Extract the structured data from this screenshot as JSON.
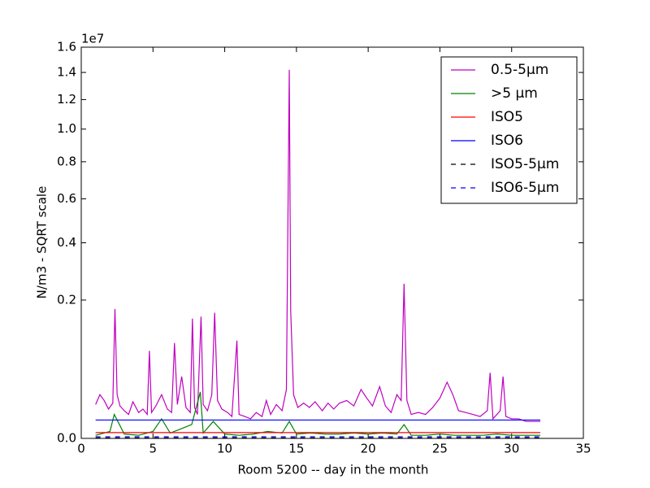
{
  "chart_data": {
    "type": "line",
    "xlabel": "Room 5200 -- day in the month",
    "ylabel": "N/m3 - SQRT scale",
    "y_offset_label": "1e7",
    "yscale": "sqrt",
    "xlim": [
      0,
      35
    ],
    "xticks": [
      0,
      5,
      10,
      15,
      20,
      25,
      30,
      35
    ],
    "ylim": [
      0,
      16000000
    ],
    "yticks": [
      {
        "value": 0,
        "label": "0.0"
      },
      {
        "value": 2000000,
        "label": "0.2"
      },
      {
        "value": 4000000,
        "label": "0.4"
      },
      {
        "value": 6000000,
        "label": "0.6"
      },
      {
        "value": 8000000,
        "label": "0.8"
      },
      {
        "value": 10000000,
        "label": "1.0"
      },
      {
        "value": 12000000,
        "label": "1.2"
      },
      {
        "value": 14000000,
        "label": "1.4"
      },
      {
        "value": 16000000,
        "label": "1.6"
      }
    ],
    "legend": "upper right",
    "series": [
      {
        "name": "0.5-5µm",
        "color": "#bf00bf",
        "dash": false,
        "x": [
          1.0,
          1.3,
          1.6,
          1.9,
          2.2,
          2.35,
          2.5,
          2.7,
          3.0,
          3.3,
          3.6,
          4.0,
          4.3,
          4.6,
          4.75,
          4.9,
          5.2,
          5.6,
          6.0,
          6.3,
          6.5,
          6.7,
          7.0,
          7.3,
          7.6,
          7.75,
          7.9,
          8.1,
          8.35,
          8.5,
          8.8,
          9.1,
          9.3,
          9.5,
          9.8,
          10.2,
          10.5,
          10.85,
          11.0,
          11.4,
          11.8,
          12.2,
          12.6,
          12.9,
          13.2,
          13.6,
          14.0,
          14.3,
          14.5,
          14.6,
          14.8,
          15.1,
          15.5,
          15.9,
          16.3,
          16.8,
          17.2,
          17.6,
          18.0,
          18.5,
          19.0,
          19.5,
          19.9,
          20.3,
          20.8,
          21.2,
          21.6,
          22.0,
          22.3,
          22.5,
          22.7,
          23.0,
          23.5,
          24.0,
          24.5,
          25.0,
          25.5,
          25.9,
          26.3,
          26.8,
          27.3,
          27.8,
          28.3,
          28.5,
          28.7,
          29.2,
          29.4,
          29.6,
          30.0,
          30.5,
          31.0,
          31.5,
          32.0
        ],
        "values": [
          120000,
          200000,
          150000,
          90000,
          130000,
          1750000,
          200000,
          110000,
          80000,
          60000,
          140000,
          70000,
          90000,
          60000,
          800000,
          70000,
          110000,
          200000,
          90000,
          70000,
          950000,
          120000,
          400000,
          100000,
          70000,
          1500000,
          100000,
          60000,
          1550000,
          120000,
          80000,
          200000,
          1650000,
          150000,
          90000,
          70000,
          50000,
          1000000,
          60000,
          50000,
          40000,
          70000,
          50000,
          150000,
          60000,
          120000,
          80000,
          250000,
          14200000,
          1700000,
          200000,
          100000,
          130000,
          100000,
          140000,
          80000,
          130000,
          90000,
          130000,
          150000,
          110000,
          250000,
          170000,
          110000,
          280000,
          110000,
          70000,
          200000,
          150000,
          2500000,
          150000,
          60000,
          70000,
          60000,
          100000,
          170000,
          330000,
          200000,
          80000,
          70000,
          60000,
          50000,
          80000,
          450000,
          40000,
          80000,
          400000,
          50000,
          40000,
          40000,
          30000,
          30000,
          30000
        ]
      },
      {
        "name": ">5 µm",
        "color": "#008000",
        "dash": false,
        "x": [
          1.0,
          2.0,
          2.3,
          3.0,
          4.0,
          5.0,
          5.6,
          6.2,
          7.0,
          7.7,
          8.3,
          8.5,
          9.2,
          10.0,
          11.0,
          12.0,
          13.0,
          14.0,
          14.5,
          15.0,
          16.0,
          17.0,
          18.0,
          19.0,
          20.0,
          21.0,
          22.0,
          22.5,
          23.0,
          24.0,
          25.0,
          26.0,
          27.0,
          28.0,
          29.0,
          30.0,
          31.0,
          32.0
        ],
        "values": [
          1000,
          5000,
          60000,
          2000,
          1000,
          5000,
          40000,
          3000,
          10000,
          20000,
          225000,
          3000,
          30000,
          2000,
          1000,
          2000,
          5000,
          3000,
          30000,
          2000,
          3000,
          2000,
          2000,
          3000,
          2000,
          3000,
          2000,
          20000,
          1000,
          1000,
          2000,
          1000,
          1000,
          1000,
          2000,
          1000,
          1000,
          1000
        ]
      },
      {
        "name": "ISO5",
        "color": "#ff0000",
        "dash": false,
        "x": [
          1,
          32
        ],
        "values": [
          3520,
          3520
        ]
      },
      {
        "name": "ISO6",
        "color": "#0000ff",
        "dash": false,
        "x": [
          1,
          32
        ],
        "values": [
          35200,
          35200
        ]
      },
      {
        "name": "ISO5-5µm",
        "color": "#000000",
        "dash": true,
        "x": [
          1,
          32
        ],
        "values": [
          29,
          29
        ]
      },
      {
        "name": "ISO6-5µm",
        "color": "#0000ff",
        "dash": true,
        "x": [
          1,
          32
        ],
        "values": [
          293,
          293
        ]
      }
    ]
  }
}
